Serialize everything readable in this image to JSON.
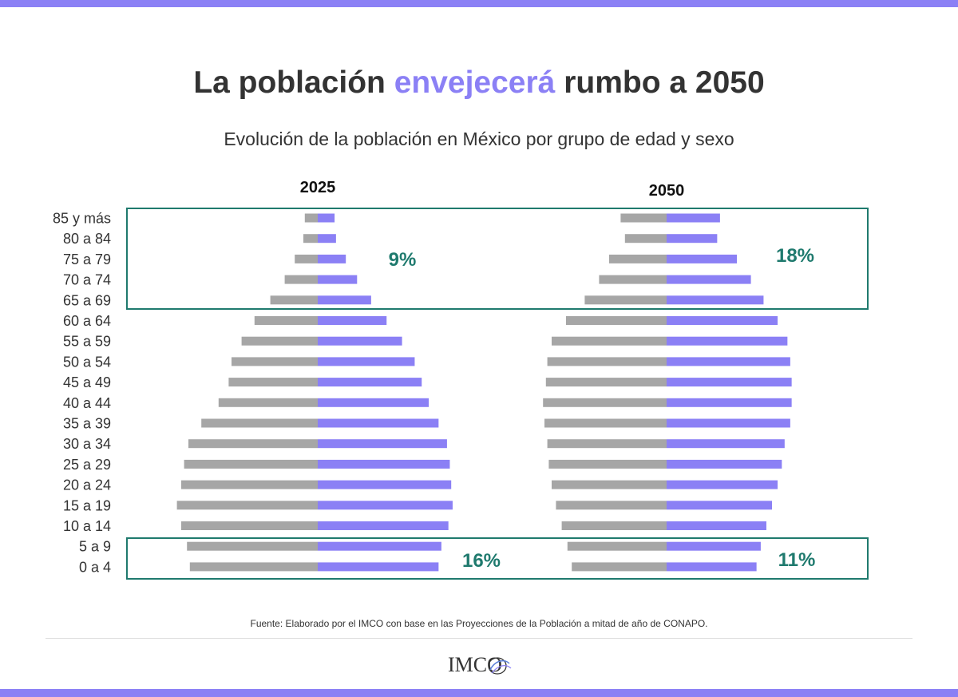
{
  "header": {
    "title_before": "La población",
    "title_accent": "envejecerá",
    "title_after": "rumbo a 2050",
    "subtitle": "Evolución de la población en México por grupo de edad y sexo"
  },
  "colors": {
    "male": "#a6a6a6",
    "female": "#8b80f5",
    "highlight": "#1f7a6e",
    "band": "#8b80f5"
  },
  "chart_data": {
    "type": "bar",
    "subtype": "population-pyramid",
    "units": "relative bar length (0-1 scale, values not printed)",
    "age_groups": [
      "85 y más",
      "80 a 84",
      "75 a 79",
      "70 a 74",
      "65 a 69",
      "60 a 64",
      "55 a 59",
      "50 a 54",
      "45 a 49",
      "40 a 44",
      "35 a 39",
      "30 a 34",
      "25 a 29",
      "20 a 24",
      "15 a 19",
      "10 a 14",
      "5 a 9",
      "0 a 4"
    ],
    "pyramids": [
      {
        "year": "2025",
        "male": [
          0.09,
          0.1,
          0.16,
          0.23,
          0.33,
          0.44,
          0.53,
          0.6,
          0.62,
          0.69,
          0.81,
          0.9,
          0.93,
          0.95,
          0.98,
          0.95,
          0.91,
          0.89
        ],
        "female": [
          0.12,
          0.13,
          0.2,
          0.28,
          0.38,
          0.49,
          0.6,
          0.69,
          0.74,
          0.79,
          0.86,
          0.92,
          0.94,
          0.95,
          0.96,
          0.93,
          0.88,
          0.86
        ],
        "highlights": [
          {
            "label": "9%",
            "from": "65 a 69",
            "to": "85 y más"
          },
          {
            "label": "16%",
            "from": "0 a 4",
            "to": "5 a 9"
          }
        ]
      },
      {
        "year": "2050",
        "male": [
          0.32,
          0.29,
          0.4,
          0.47,
          0.57,
          0.7,
          0.8,
          0.83,
          0.84,
          0.86,
          0.85,
          0.83,
          0.82,
          0.8,
          0.77,
          0.73,
          0.69,
          0.66
        ],
        "female": [
          0.38,
          0.36,
          0.5,
          0.6,
          0.69,
          0.79,
          0.86,
          0.88,
          0.89,
          0.89,
          0.88,
          0.84,
          0.82,
          0.79,
          0.75,
          0.71,
          0.67,
          0.64
        ],
        "highlights": [
          {
            "label": "18%",
            "from": "65 a 69",
            "to": "85 y más"
          },
          {
            "label": "11%",
            "from": "0 a 4",
            "to": "5 a 9"
          }
        ]
      }
    ]
  },
  "footer": {
    "source": "Fuente: Elaborado por el IMCO con base en las Proyecciones de la Población a mitad de año de CONAPO.",
    "logo_text": "IMCO"
  }
}
